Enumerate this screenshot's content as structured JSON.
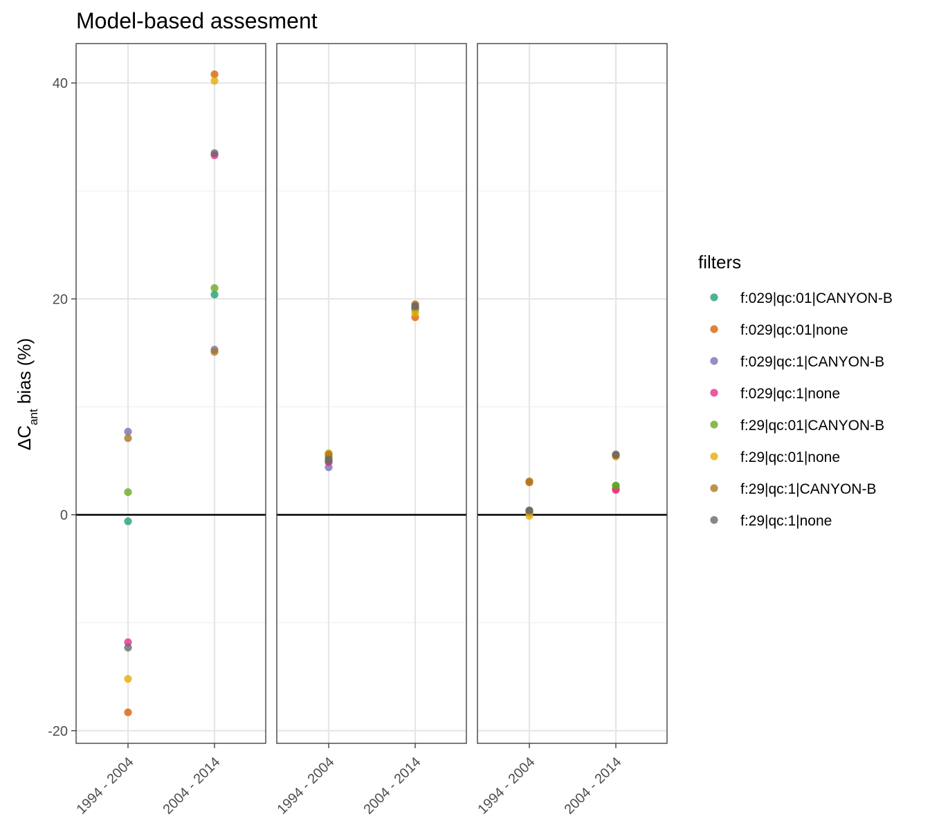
{
  "chart_data": {
    "type": "scatter",
    "title": "Model-based assesment",
    "ylabel": {
      "prefix": "ΔC",
      "subscript": "ant",
      "suffix": " bias (%)"
    },
    "xlabel": "",
    "ylim": [
      -21,
      44
    ],
    "yticks": [
      -20,
      0,
      20,
      40
    ],
    "ygrid_minor": [
      -10,
      10,
      30
    ],
    "grid": true,
    "hline": 0,
    "categories": [
      "1994 - 2004",
      "2004 - 2014"
    ],
    "legend": {
      "title": "filters",
      "position": "right"
    },
    "series": [
      {
        "name": "f:029|qc:01|CANYON-B",
        "color": "#1B9E77",
        "panels": [
          [
            -0.6,
            20.4
          ],
          [
            4.9,
            19.1
          ],
          [
            0.3,
            2.7
          ]
        ]
      },
      {
        "name": "f:029|qc:01|none",
        "color": "#D95F02",
        "panels": [
          [
            -18.3,
            40.8
          ],
          [
            5.4,
            18.3
          ],
          [
            3.0,
            2.4
          ]
        ]
      },
      {
        "name": "f:029|qc:1|CANYON-B",
        "color": "#7570B3",
        "panels": [
          [
            7.7,
            15.3
          ],
          [
            4.4,
            19.4
          ],
          [
            0.4,
            5.5
          ]
        ]
      },
      {
        "name": "f:029|qc:1|none",
        "color": "#E7298A",
        "panels": [
          [
            -11.8,
            33.3
          ],
          [
            4.9,
            19.2
          ],
          [
            0.2,
            2.3
          ]
        ]
      },
      {
        "name": "f:29|qc:01|CANYON-B",
        "color": "#66A61E",
        "panels": [
          [
            2.1,
            21.0
          ],
          [
            5.2,
            19.0
          ],
          [
            0.3,
            2.7
          ]
        ]
      },
      {
        "name": "f:29|qc:01|none",
        "color": "#E6AB02",
        "panels": [
          [
            -15.2,
            40.2
          ],
          [
            5.7,
            18.7
          ],
          [
            -0.1,
            5.4
          ]
        ]
      },
      {
        "name": "f:29|qc:1|CANYON-B",
        "color": "#A6761D",
        "panels": [
          [
            7.1,
            15.1
          ],
          [
            5.6,
            19.5
          ],
          [
            3.1,
            5.5
          ]
        ]
      },
      {
        "name": "f:29|qc:1|none",
        "color": "#666666",
        "panels": [
          [
            -12.3,
            33.5
          ],
          [
            5.1,
            19.3
          ],
          [
            0.4,
            5.6
          ]
        ]
      }
    ]
  }
}
